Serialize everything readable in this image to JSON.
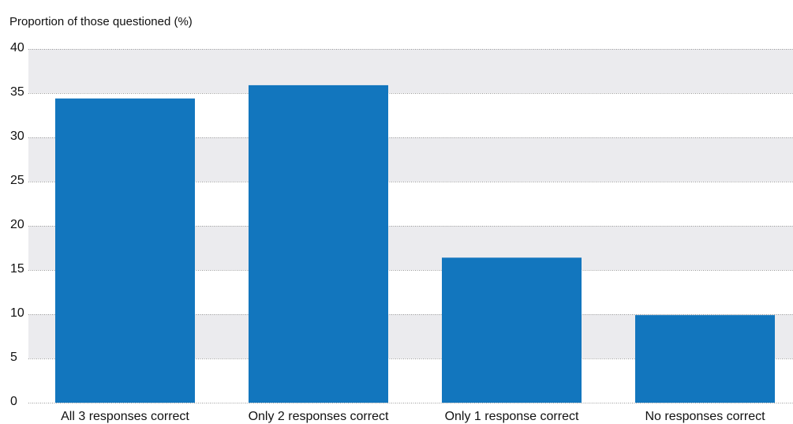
{
  "chart_data": {
    "type": "bar",
    "ylabel": "Proportion of those questioned (%)",
    "ylim": [
      0,
      40
    ],
    "yticks": [
      0,
      5,
      10,
      15,
      20,
      25,
      30,
      35,
      40
    ],
    "categories": [
      "All 3 responses correct",
      "Only 2 responses correct",
      "Only 1 response correct",
      "No responses correct"
    ],
    "values": [
      34.4,
      35.9,
      16.4,
      9.9
    ],
    "grid": true,
    "legend": "none",
    "colors": {
      "bar": "#1276be",
      "band": "#ebebee",
      "gridline": "#999999",
      "text": "#111111"
    }
  }
}
